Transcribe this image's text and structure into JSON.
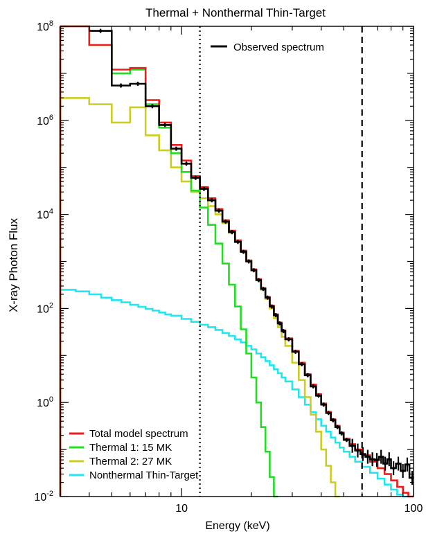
{
  "chart_data": {
    "type": "line",
    "title": "Thermal + Nonthermal Thin-Target",
    "xlabel": "Energy (keV)",
    "ylabel": "X-ray Photon Flux",
    "xscale": "log",
    "yscale": "log",
    "xlim": [
      3,
      100
    ],
    "ylim": [
      0.01,
      100000000
    ],
    "x_ticks": [
      {
        "value": 10,
        "label": "10"
      },
      {
        "value": 100,
        "label": "100"
      }
    ],
    "y_ticks": [
      {
        "value": 0.01,
        "base": "10",
        "exp": "-2"
      },
      {
        "value": 1,
        "base": "10",
        "exp": "0"
      },
      {
        "value": 100,
        "base": "10",
        "exp": "2"
      },
      {
        "value": 10000,
        "base": "10",
        "exp": "4"
      },
      {
        "value": 1000000,
        "base": "10",
        "exp": "6"
      },
      {
        "value": 100000000,
        "base": "10",
        "exp": "8"
      }
    ],
    "vlines": [
      {
        "x": 12,
        "style": "dotted"
      },
      {
        "x": 60,
        "style": "dashed"
      }
    ],
    "legend_top": {
      "label": "Observed spectrum",
      "color": "#000000",
      "placement": "top-right"
    },
    "legend_bottom": [
      {
        "label": "Total model spectrum",
        "color": "#ee1c1c"
      },
      {
        "label": "Thermal 1: 15 MK",
        "color": "#22dd22"
      },
      {
        "label": "Thermal 2: 27 MK",
        "color": "#cccc22"
      },
      {
        "label": "Nonthermal Thin-Target",
        "color": "#22e6ee"
      }
    ],
    "series": [
      {
        "name": "Observed spectrum",
        "color": "#000000",
        "has_error_bars": true,
        "points": [
          [
            4,
            80000000.0
          ],
          [
            5,
            5500000.0
          ],
          [
            6,
            6000000.0
          ],
          [
            7,
            2000000.0
          ],
          [
            8,
            800000.0
          ],
          [
            9,
            250000.0
          ],
          [
            10,
            120000.0
          ],
          [
            11,
            60000.0
          ],
          [
            12,
            35000.0
          ],
          [
            13,
            20000.0
          ],
          [
            14,
            12000.0
          ],
          [
            15,
            7000.0
          ],
          [
            16,
            4200.0
          ],
          [
            17,
            2600.0
          ],
          [
            18,
            1600.0
          ],
          [
            19,
            1000.0
          ],
          [
            20,
            650
          ],
          [
            21,
            400
          ],
          [
            22,
            260
          ],
          [
            23,
            170
          ],
          [
            24,
            110
          ],
          [
            25,
            72
          ],
          [
            26,
            48
          ],
          [
            27,
            33
          ],
          [
            28,
            22
          ],
          [
            30,
            12
          ],
          [
            32,
            6.5
          ],
          [
            34,
            3.8
          ],
          [
            36,
            2.2
          ],
          [
            38,
            1.4
          ],
          [
            40,
            0.9
          ],
          [
            42,
            0.6
          ],
          [
            44,
            0.42
          ],
          [
            46,
            0.3
          ],
          [
            48,
            0.22
          ],
          [
            50,
            0.16
          ],
          [
            53,
            0.12
          ],
          [
            56,
            0.095
          ],
          [
            59,
            0.08
          ],
          [
            62,
            0.07
          ],
          [
            65,
            0.062
          ],
          [
            68,
            0.06
          ],
          [
            71,
            0.07
          ],
          [
            74,
            0.05
          ],
          [
            77,
            0.062
          ],
          [
            80,
            0.04
          ],
          [
            84,
            0.05
          ],
          [
            88,
            0.035
          ],
          [
            92,
            0.048
          ],
          [
            96,
            0.025
          ]
        ]
      },
      {
        "name": "Total model spectrum",
        "color": "#ee1c1c",
        "points": [
          [
            3,
            100000000.0
          ],
          [
            4,
            40000000.0
          ],
          [
            5,
            12000000.0
          ],
          [
            6,
            13000000.0
          ],
          [
            7,
            2700000.0
          ],
          [
            8,
            900000.0
          ],
          [
            9,
            300000.0
          ],
          [
            10,
            140000.0
          ],
          [
            11,
            65000.0
          ],
          [
            12,
            38000.0
          ],
          [
            13,
            22000.0
          ],
          [
            14,
            13000.0
          ],
          [
            15,
            7500.0
          ],
          [
            16,
            4500.0
          ],
          [
            17,
            2800.0
          ],
          [
            18,
            1700.0
          ],
          [
            19,
            1050.0
          ],
          [
            20,
            680
          ],
          [
            21,
            420
          ],
          [
            22,
            270
          ],
          [
            23,
            175
          ],
          [
            24,
            115
          ],
          [
            25,
            75
          ],
          [
            26,
            50
          ],
          [
            27,
            34
          ],
          [
            28,
            23
          ],
          [
            30,
            12.5
          ],
          [
            32,
            7
          ],
          [
            34,
            4
          ],
          [
            36,
            2.4
          ],
          [
            38,
            1.5
          ],
          [
            40,
            0.95
          ],
          [
            42,
            0.63
          ],
          [
            44,
            0.44
          ],
          [
            46,
            0.32
          ],
          [
            48,
            0.23
          ],
          [
            50,
            0.17
          ],
          [
            53,
            0.13
          ],
          [
            56,
            0.1
          ],
          [
            60,
            0.075
          ],
          [
            65,
            0.055
          ],
          [
            70,
            0.04
          ],
          [
            75,
            0.03
          ],
          [
            80,
            0.022
          ],
          [
            85,
            0.016
          ],
          [
            90,
            0.012
          ],
          [
            95,
            0.009
          ],
          [
            100,
            0.007
          ]
        ]
      },
      {
        "name": "Thermal 1: 15 MK",
        "color": "#22dd22",
        "points": [
          [
            3,
            100000000.0
          ],
          [
            4,
            40000000.0
          ],
          [
            5,
            10000000.0
          ],
          [
            6,
            12000000.0
          ],
          [
            7,
            2200000.0
          ],
          [
            8,
            700000.0
          ],
          [
            9,
            200000.0
          ],
          [
            10,
            80000.0
          ],
          [
            11,
            32000.0
          ],
          [
            12,
            14000.0
          ],
          [
            13,
            6000.0
          ],
          [
            14,
            2400.0
          ],
          [
            15,
            900
          ],
          [
            16,
            320
          ],
          [
            17,
            110
          ],
          [
            18,
            36
          ],
          [
            19,
            11
          ],
          [
            20,
            3.4
          ],
          [
            21,
            1.0
          ],
          [
            22,
            0.3
          ],
          [
            23,
            0.09
          ],
          [
            24,
            0.026
          ],
          [
            25,
            0.008
          ]
        ]
      },
      {
        "name": "Thermal 2: 27 MK",
        "color": "#cccc22",
        "points": [
          [
            3,
            3000000.0
          ],
          [
            4,
            2200000.0
          ],
          [
            5,
            900000.0
          ],
          [
            6,
            1900000.0
          ],
          [
            7,
            480000.0
          ],
          [
            8,
            230000.0
          ],
          [
            9,
            100000.0
          ],
          [
            10,
            50000.0
          ],
          [
            11,
            30000.0
          ],
          [
            12,
            22000.0
          ],
          [
            13,
            15000.0
          ],
          [
            14,
            10000.0
          ],
          [
            15,
            6500.0
          ],
          [
            16,
            4100.0
          ],
          [
            17,
            2600.0
          ],
          [
            18,
            1600.0
          ],
          [
            19,
            1000.0
          ],
          [
            20,
            640
          ],
          [
            21,
            400
          ],
          [
            22,
            250
          ],
          [
            23,
            160
          ],
          [
            24,
            100
          ],
          [
            25,
            62
          ],
          [
            26,
            40
          ],
          [
            27,
            25
          ],
          [
            28,
            16
          ],
          [
            30,
            7
          ],
          [
            32,
            3
          ],
          [
            34,
            1.3
          ],
          [
            36,
            0.55
          ],
          [
            38,
            0.24
          ],
          [
            40,
            0.1
          ],
          [
            42,
            0.045
          ],
          [
            44,
            0.02
          ],
          [
            46,
            0.009
          ]
        ]
      },
      {
        "name": "Nonthermal Thin-Target",
        "color": "#22e6ee",
        "points": [
          [
            3,
            250
          ],
          [
            3.5,
            230
          ],
          [
            4,
            200
          ],
          [
            4.5,
            170
          ],
          [
            5,
            150
          ],
          [
            5.5,
            135
          ],
          [
            6,
            120
          ],
          [
            6.5,
            108
          ],
          [
            7,
            98
          ],
          [
            7.5,
            90
          ],
          [
            8,
            82
          ],
          [
            8.5,
            75
          ],
          [
            9,
            70
          ],
          [
            10,
            60
          ],
          [
            11,
            52
          ],
          [
            12,
            45
          ],
          [
            13,
            40
          ],
          [
            14,
            35
          ],
          [
            15,
            30
          ],
          [
            16,
            26
          ],
          [
            17,
            22
          ],
          [
            18,
            19
          ],
          [
            19,
            16
          ],
          [
            20,
            13.5
          ],
          [
            21,
            11
          ],
          [
            22,
            9.2
          ],
          [
            23,
            7.6
          ],
          [
            24,
            6.2
          ],
          [
            25,
            5.1
          ],
          [
            26,
            4.2
          ],
          [
            27,
            3.4
          ],
          [
            28,
            2.8
          ],
          [
            30,
            1.9
          ],
          [
            32,
            1.3
          ],
          [
            34,
            0.9
          ],
          [
            36,
            0.62
          ],
          [
            38,
            0.44
          ],
          [
            40,
            0.32
          ],
          [
            42,
            0.24
          ],
          [
            44,
            0.18
          ],
          [
            46,
            0.14
          ],
          [
            48,
            0.11
          ],
          [
            50,
            0.09
          ],
          [
            53,
            0.07
          ],
          [
            56,
            0.055
          ],
          [
            60,
            0.043
          ],
          [
            65,
            0.032
          ],
          [
            70,
            0.024
          ],
          [
            75,
            0.018
          ],
          [
            80,
            0.014
          ],
          [
            85,
            0.011
          ],
          [
            90,
            0.0085
          ]
        ]
      }
    ]
  }
}
